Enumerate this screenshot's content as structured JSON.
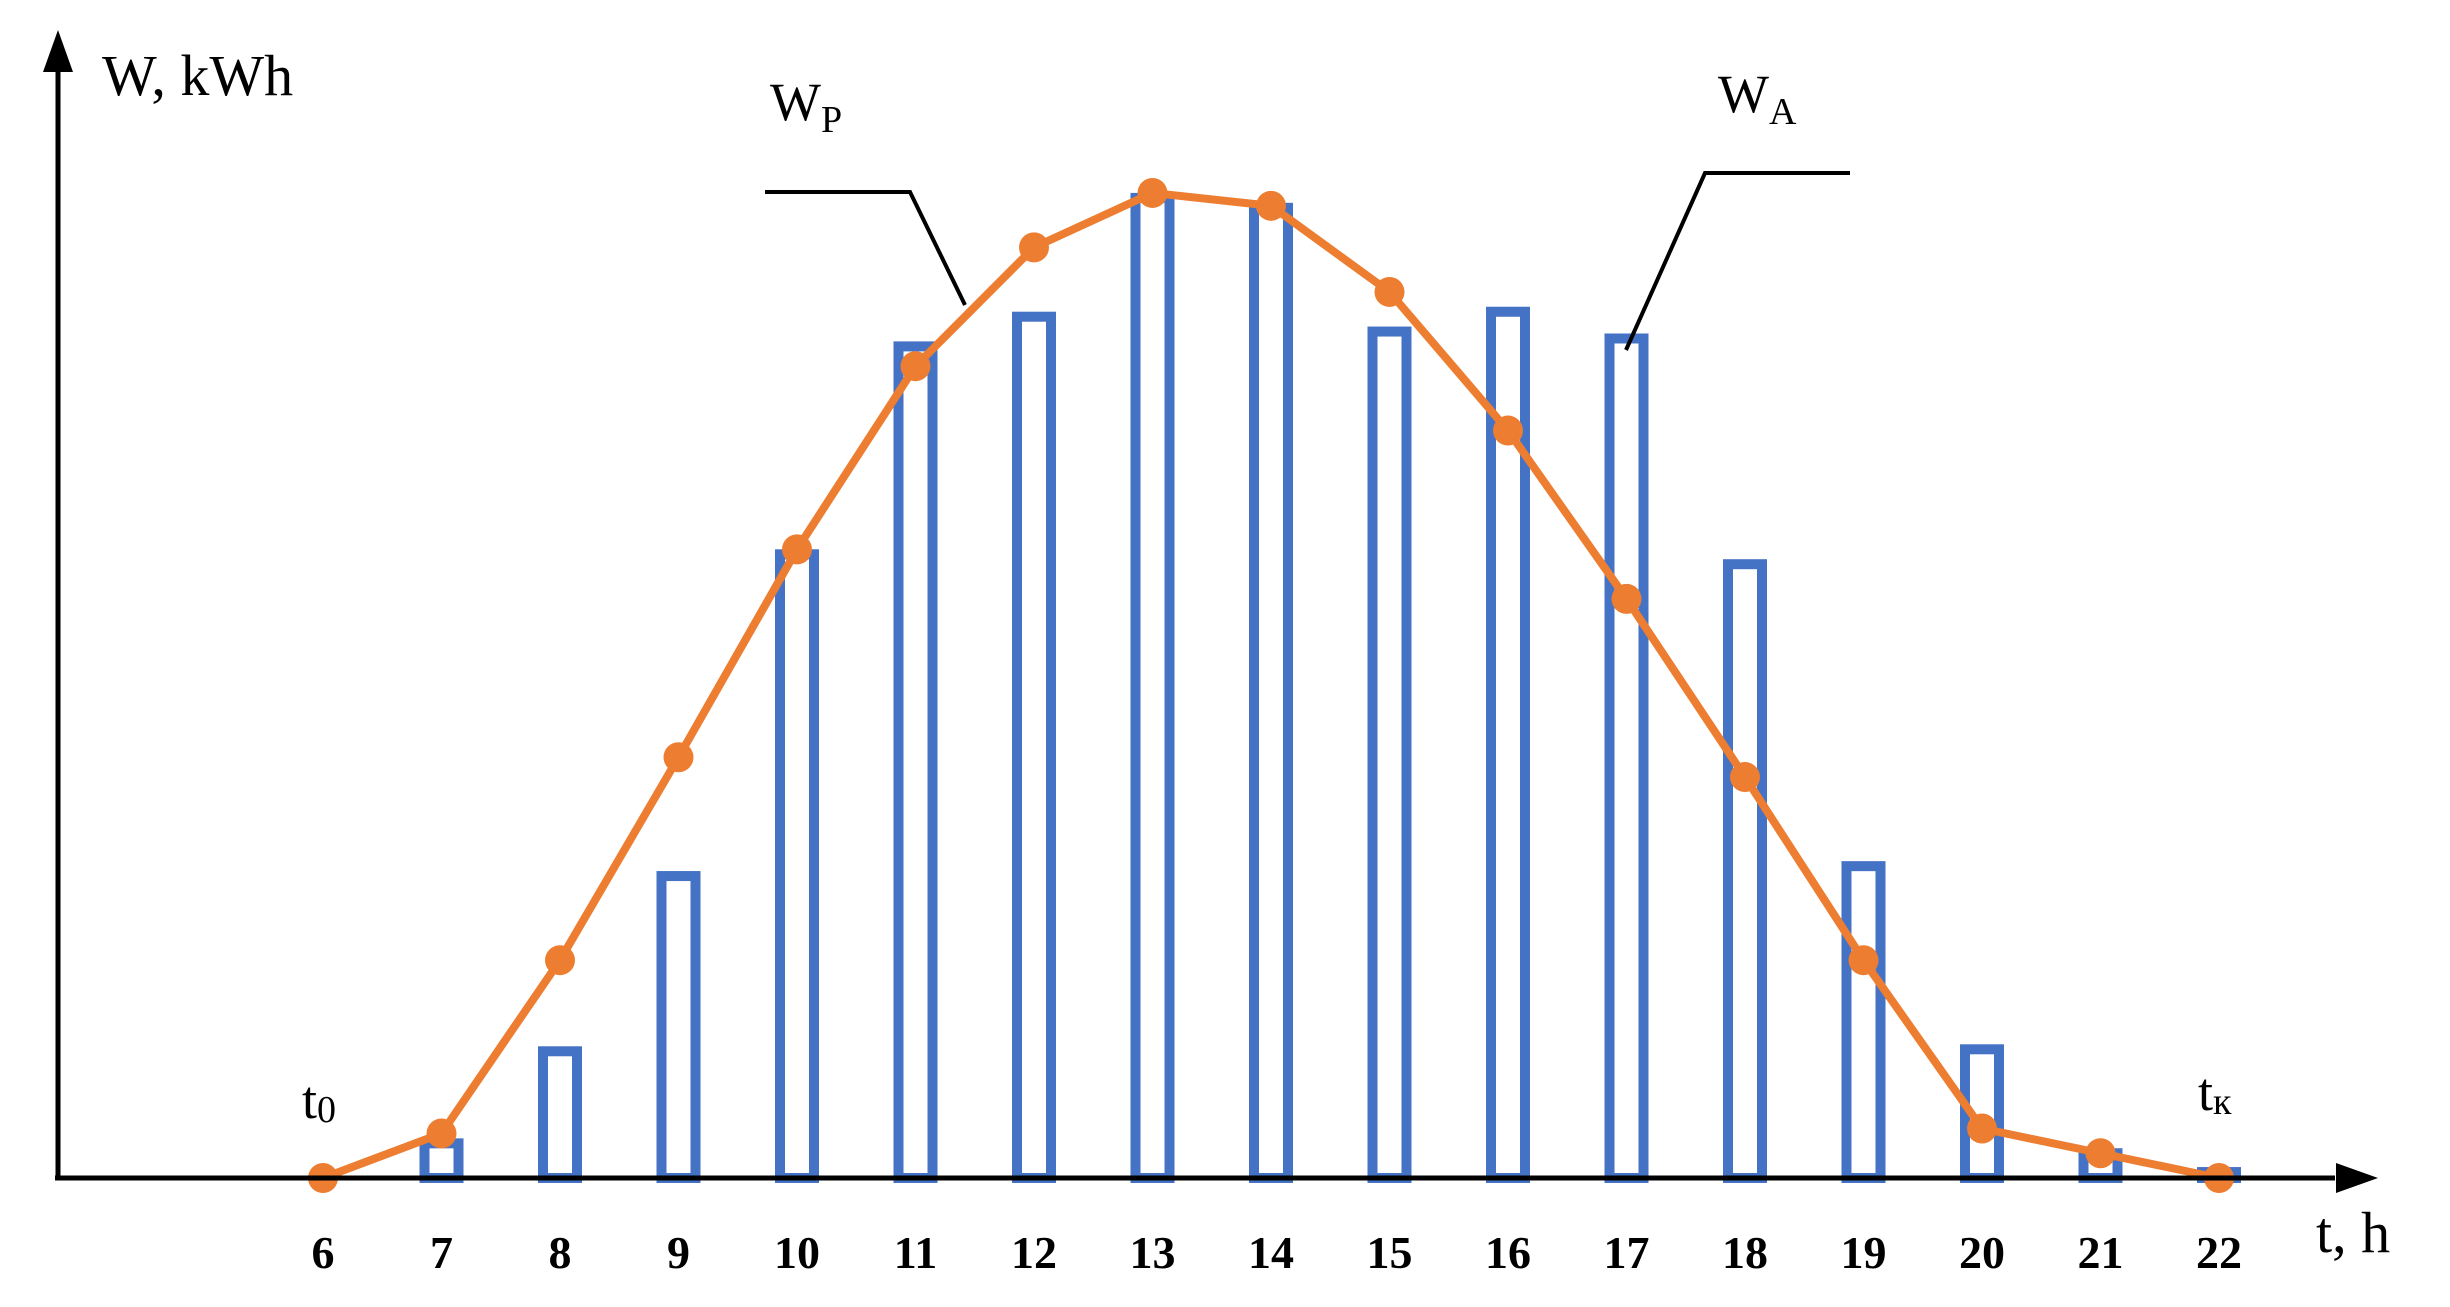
{
  "chart_data": {
    "type": "bar",
    "x": [
      6,
      7,
      8,
      9,
      10,
      11,
      12,
      13,
      14,
      15,
      16,
      17,
      18,
      19,
      20,
      21,
      22
    ],
    "ylim": [
      0,
      100
    ],
    "xlabel": "t, h",
    "ylabel": "W, kWh",
    "grid": false,
    "series": [
      {
        "name": "WA",
        "kind": "bar",
        "name_main": "W",
        "name_sub": "A",
        "values": [
          0,
          3.5,
          12.8,
          30.5,
          63,
          84,
          87,
          99,
          98,
          85.5,
          87.5,
          84.8,
          62,
          31.5,
          13,
          2.5,
          0.6
        ],
        "color": "#4472C4"
      },
      {
        "name": "WP",
        "kind": "line",
        "name_main": "W",
        "name_sub": "P",
        "values": [
          0,
          4.5,
          22,
          42.5,
          63.5,
          82,
          94,
          99.5,
          98.2,
          89.5,
          75.5,
          58.5,
          40.5,
          22,
          5,
          2.5,
          0
        ],
        "color": "#ED7D31"
      }
    ],
    "annotations": {
      "t_start": {
        "main": "t",
        "sub": "0"
      },
      "t_end": {
        "main": "t",
        "sub": "к"
      }
    }
  }
}
